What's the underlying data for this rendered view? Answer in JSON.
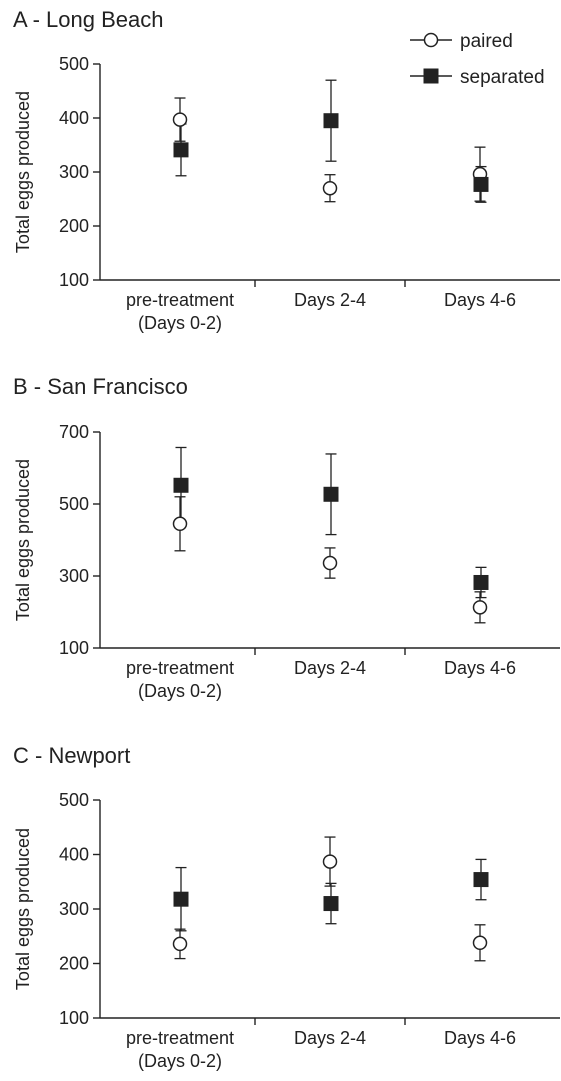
{
  "legend": {
    "entries": [
      {
        "label": "paired",
        "marker": "open-circle"
      },
      {
        "label": "separated",
        "marker": "filled-square"
      }
    ],
    "placement": "top-right"
  },
  "colors": {
    "ink": "#222222",
    "background": "#ffffff"
  },
  "chart_data": [
    {
      "type": "scatter",
      "title": "A - Long Beach",
      "ylabel": "Total eggs produced",
      "xlabel": "",
      "ylim": [
        100,
        500
      ],
      "yticks": [
        100,
        200,
        300,
        400,
        500
      ],
      "categories": [
        "pre-treatment\n(Days 0-2)",
        "Days 2-4",
        "Days 4-6"
      ],
      "series": [
        {
          "name": "paired",
          "values": [
            397,
            270,
            296
          ],
          "errors": [
            40,
            25,
            50
          ]
        },
        {
          "name": "separated",
          "values": [
            341,
            395,
            277
          ],
          "errors": [
            48,
            75,
            33
          ]
        }
      ]
    },
    {
      "type": "scatter",
      "title": "B - San Francisco",
      "ylabel": "Total eggs produced",
      "xlabel": "",
      "ylim": [
        100,
        700
      ],
      "yticks": [
        100,
        300,
        500,
        700
      ],
      "categories": [
        "pre-treatment\n(Days 0-2)",
        "Days 2-4",
        "Days 4-6"
      ],
      "series": [
        {
          "name": "paired",
          "values": [
            445,
            336,
            213
          ],
          "errors": [
            75,
            42,
            43
          ]
        },
        {
          "name": "separated",
          "values": [
            552,
            527,
            282
          ],
          "errors": [
            105,
            112,
            42
          ]
        }
      ]
    },
    {
      "type": "scatter",
      "title": "C - Newport",
      "ylabel": "Total eggs produced",
      "xlabel": "",
      "ylim": [
        100,
        500
      ],
      "yticks": [
        100,
        200,
        300,
        400,
        500
      ],
      "categories": [
        "pre-treatment\n(Days 0-2)",
        "Days 2-4",
        "Days 4-6"
      ],
      "series": [
        {
          "name": "paired",
          "values": [
            236,
            387,
            238
          ],
          "errors": [
            27,
            45,
            33
          ]
        },
        {
          "name": "separated",
          "values": [
            318,
            310,
            354
          ],
          "errors": [
            58,
            37,
            37
          ]
        }
      ]
    }
  ]
}
